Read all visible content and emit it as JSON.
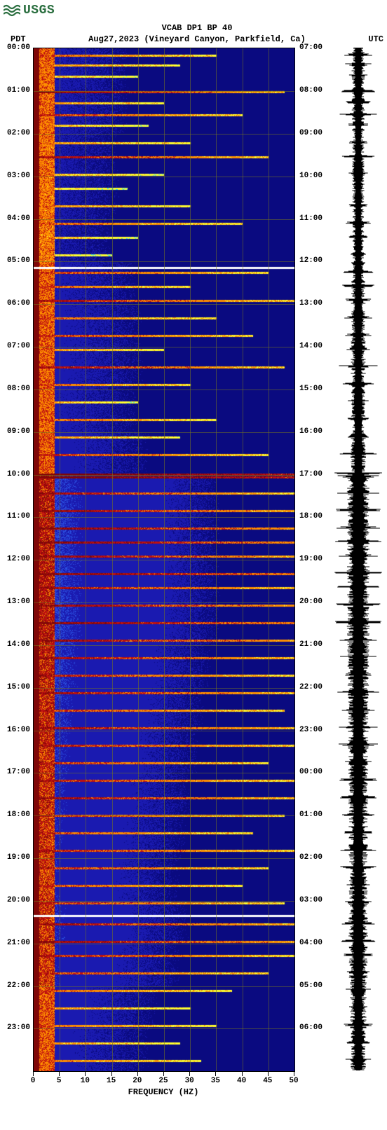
{
  "logo": {
    "text": "USGS",
    "color": "#2a6e3f"
  },
  "header": {
    "title": "VCAB DP1 BP 40",
    "left_tz": "PDT",
    "date_loc": "Aug27,2023 (Vineyard Canyon, Parkfield, Ca)",
    "right_tz": "UTC"
  },
  "spectrogram": {
    "type": "spectrogram",
    "xlabel": "FREQUENCY (HZ)",
    "xlim": [
      0,
      50
    ],
    "xtick_step": 5,
    "xticks": [
      0,
      5,
      10,
      15,
      20,
      25,
      30,
      35,
      40,
      45,
      50
    ],
    "hours": 24,
    "left_labels": [
      "00:00",
      "01:00",
      "02:00",
      "03:00",
      "04:00",
      "05:00",
      "06:00",
      "07:00",
      "08:00",
      "09:00",
      "10:00",
      "11:00",
      "12:00",
      "13:00",
      "14:00",
      "15:00",
      "16:00",
      "17:00",
      "18:00",
      "19:00",
      "20:00",
      "21:00",
      "22:00",
      "23:00"
    ],
    "right_labels": [
      "07:00",
      "08:00",
      "09:00",
      "10:00",
      "11:00",
      "12:00",
      "13:00",
      "14:00",
      "15:00",
      "16:00",
      "17:00",
      "18:00",
      "19:00",
      "20:00",
      "21:00",
      "22:00",
      "23:00",
      "00:00",
      "01:00",
      "02:00",
      "03:00",
      "04:00",
      "05:00",
      "06:00"
    ],
    "colors": {
      "background": "#0a0a80",
      "low_blue": "#1a1ab0",
      "mid_blue": "#2a50e0",
      "cyan": "#20e0ff",
      "yellow": "#ffff30",
      "orange": "#ff9000",
      "red": "#c01010",
      "dark_red": "#800808",
      "grid": "rgba(120,120,30,0.55)",
      "white_gap": "#ffffff"
    },
    "white_gap_rows": [
      312,
      1237
    ],
    "event_rows": [
      {
        "t": 10,
        "ext": 35,
        "str": 0.6
      },
      {
        "t": 24,
        "ext": 28,
        "str": 0.5
      },
      {
        "t": 40,
        "ext": 20,
        "str": 0.4
      },
      {
        "t": 62,
        "ext": 48,
        "str": 0.9
      },
      {
        "t": 78,
        "ext": 25,
        "str": 0.5
      },
      {
        "t": 95,
        "ext": 40,
        "str": 0.7
      },
      {
        "t": 110,
        "ext": 22,
        "str": 0.4
      },
      {
        "t": 135,
        "ext": 30,
        "str": 0.5
      },
      {
        "t": 155,
        "ext": 45,
        "str": 0.8
      },
      {
        "t": 180,
        "ext": 25,
        "str": 0.4
      },
      {
        "t": 200,
        "ext": 18,
        "str": 0.3
      },
      {
        "t": 225,
        "ext": 30,
        "str": 0.5
      },
      {
        "t": 250,
        "ext": 40,
        "str": 0.6
      },
      {
        "t": 270,
        "ext": 20,
        "str": 0.4
      },
      {
        "t": 295,
        "ext": 15,
        "str": 0.3
      },
      {
        "t": 320,
        "ext": 45,
        "str": 0.7
      },
      {
        "t": 340,
        "ext": 30,
        "str": 0.6
      },
      {
        "t": 360,
        "ext": 50,
        "str": 0.8
      },
      {
        "t": 385,
        "ext": 35,
        "str": 0.6
      },
      {
        "t": 410,
        "ext": 42,
        "str": 0.7
      },
      {
        "t": 430,
        "ext": 25,
        "str": 0.5
      },
      {
        "t": 455,
        "ext": 48,
        "str": 0.8
      },
      {
        "t": 480,
        "ext": 30,
        "str": 0.6
      },
      {
        "t": 505,
        "ext": 20,
        "str": 0.4
      },
      {
        "t": 530,
        "ext": 35,
        "str": 0.6
      },
      {
        "t": 555,
        "ext": 28,
        "str": 0.5
      },
      {
        "t": 580,
        "ext": 45,
        "str": 0.7
      },
      {
        "t": 608,
        "ext": 100,
        "str": 1.0
      },
      {
        "t": 612,
        "ext": 100,
        "str": 1.0
      },
      {
        "t": 635,
        "ext": 50,
        "str": 0.8
      },
      {
        "t": 660,
        "ext": 55,
        "str": 0.85
      },
      {
        "t": 685,
        "ext": 60,
        "str": 0.9
      },
      {
        "t": 705,
        "ext": 65,
        "str": 0.9
      },
      {
        "t": 725,
        "ext": 58,
        "str": 0.85
      },
      {
        "t": 750,
        "ext": 70,
        "str": 0.9
      },
      {
        "t": 770,
        "ext": 55,
        "str": 0.8
      },
      {
        "t": 795,
        "ext": 62,
        "str": 0.85
      },
      {
        "t": 820,
        "ext": 68,
        "str": 0.9
      },
      {
        "t": 845,
        "ext": 60,
        "str": 0.85
      },
      {
        "t": 870,
        "ext": 55,
        "str": 0.8
      },
      {
        "t": 895,
        "ext": 50,
        "str": 0.75
      },
      {
        "t": 920,
        "ext": 58,
        "str": 0.8
      },
      {
        "t": 945,
        "ext": 48,
        "str": 0.7
      },
      {
        "t": 970,
        "ext": 55,
        "str": 0.8
      },
      {
        "t": 995,
        "ext": 52,
        "str": 0.75
      },
      {
        "t": 1020,
        "ext": 45,
        "str": 0.7
      },
      {
        "t": 1045,
        "ext": 50,
        "str": 0.75
      },
      {
        "t": 1070,
        "ext": 55,
        "str": 0.8
      },
      {
        "t": 1095,
        "ext": 48,
        "str": 0.7
      },
      {
        "t": 1120,
        "ext": 42,
        "str": 0.65
      },
      {
        "t": 1145,
        "ext": 50,
        "str": 0.75
      },
      {
        "t": 1170,
        "ext": 45,
        "str": 0.7
      },
      {
        "t": 1195,
        "ext": 40,
        "str": 0.65
      },
      {
        "t": 1220,
        "ext": 48,
        "str": 0.7
      },
      {
        "t": 1250,
        "ext": 55,
        "str": 0.8
      },
      {
        "t": 1275,
        "ext": 60,
        "str": 0.85
      },
      {
        "t": 1295,
        "ext": 50,
        "str": 0.75
      },
      {
        "t": 1320,
        "ext": 45,
        "str": 0.7
      },
      {
        "t": 1345,
        "ext": 38,
        "str": 0.6
      },
      {
        "t": 1370,
        "ext": 30,
        "str": 0.5
      },
      {
        "t": 1395,
        "ext": 35,
        "str": 0.55
      },
      {
        "t": 1420,
        "ext": 28,
        "str": 0.5
      },
      {
        "t": 1445,
        "ext": 32,
        "str": 0.55
      }
    ],
    "base_intensity_by_hour": [
      0.25,
      0.25,
      0.22,
      0.22,
      0.2,
      0.28,
      0.3,
      0.3,
      0.28,
      0.32,
      0.55,
      0.55,
      0.55,
      0.55,
      0.52,
      0.5,
      0.48,
      0.46,
      0.44,
      0.42,
      0.45,
      0.42,
      0.35,
      0.32
    ]
  },
  "seismogram": {
    "type": "waveform",
    "color": "#000000",
    "center_width": 6,
    "amplitude_scale": 38
  },
  "label_fonts": {
    "axis_fontsize": 11,
    "title_fontsize": 12,
    "family": "monospace",
    "weight": "bold"
  }
}
